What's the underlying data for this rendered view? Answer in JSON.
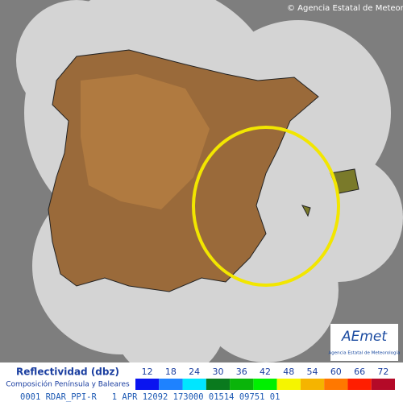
{
  "credit": "© Agencia Estatal de Meteorología",
  "logo": {
    "name": "AEmet",
    "subtitle": "Agencia Estatal de Meteorología"
  },
  "legend": {
    "title": "Reflectividad (dbz)",
    "subtitle": "Composición Península y Baleares",
    "ticks": [
      12,
      18,
      24,
      30,
      36,
      42,
      48,
      54,
      60,
      66,
      72
    ],
    "colors": [
      "#0a14f0",
      "#1e82ff",
      "#00e6ff",
      "#0a7a1e",
      "#0ab40a",
      "#00f000",
      "#f5f500",
      "#f5b400",
      "#ff7800",
      "#ff1e00",
      "#b40a28"
    ]
  },
  "status": "0001 RDAR_PPI-R   1 APR 12092 173000 01514 09751 01"
}
